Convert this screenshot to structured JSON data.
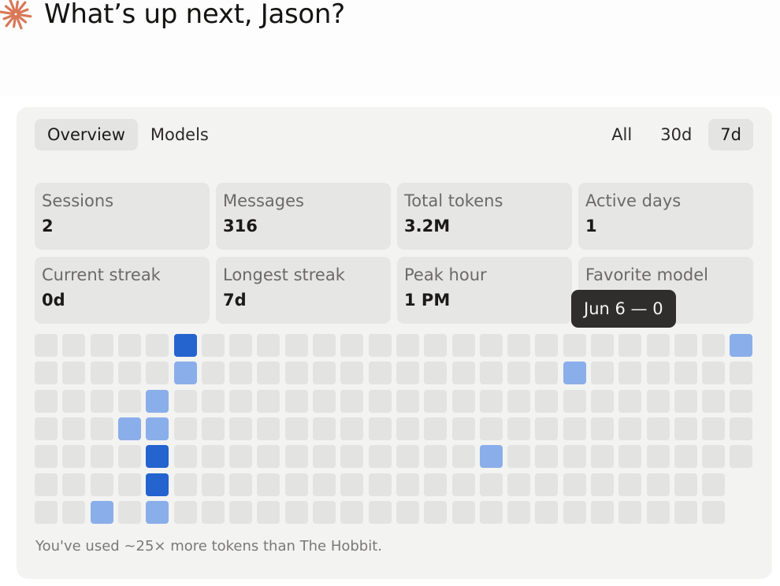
{
  "greeting": {
    "text": "What’s up next, Jason?",
    "icon": "claude-sparkle-icon",
    "icon_color": "#d97757"
  },
  "tabs": [
    {
      "label": "Overview",
      "active": true
    },
    {
      "label": "Models",
      "active": false
    }
  ],
  "ranges": [
    {
      "label": "All",
      "active": false
    },
    {
      "label": "30d",
      "active": false
    },
    {
      "label": "7d",
      "active": true
    }
  ],
  "stats": [
    {
      "label": "Sessions",
      "value": "2"
    },
    {
      "label": "Messages",
      "value": "316"
    },
    {
      "label": "Total tokens",
      "value": "3.2M"
    },
    {
      "label": "Active days",
      "value": "1"
    },
    {
      "label": "Current streak",
      "value": "0d"
    },
    {
      "label": "Longest streak",
      "value": "7d"
    },
    {
      "label": "Peak hour",
      "value": "1 PM"
    },
    {
      "label": "Favorite model",
      "value": ""
    }
  ],
  "tooltip": {
    "text": "Jun 6 — 0"
  },
  "heatmap": {
    "colors": {
      "empty": "#e3e3e2",
      "low": "#8aaee9",
      "high": "#2563cf"
    },
    "weeks": 26,
    "days": 7,
    "last_week_days": 5,
    "levels": [
      [
        0,
        0,
        0,
        0,
        0,
        0,
        0
      ],
      [
        0,
        0,
        0,
        0,
        0,
        0,
        0
      ],
      [
        0,
        0,
        0,
        0,
        0,
        0,
        1
      ],
      [
        0,
        0,
        0,
        1,
        0,
        0,
        0
      ],
      [
        0,
        0,
        1,
        1,
        2,
        2,
        1
      ],
      [
        2,
        1,
        0,
        0,
        0,
        0,
        0
      ],
      [
        0,
        0,
        0,
        0,
        0,
        0,
        0
      ],
      [
        0,
        0,
        0,
        0,
        0,
        0,
        0
      ],
      [
        0,
        0,
        0,
        0,
        0,
        0,
        0
      ],
      [
        0,
        0,
        0,
        0,
        0,
        0,
        0
      ],
      [
        0,
        0,
        0,
        0,
        0,
        0,
        0
      ],
      [
        0,
        0,
        0,
        0,
        0,
        0,
        0
      ],
      [
        0,
        0,
        0,
        0,
        0,
        0,
        0
      ],
      [
        0,
        0,
        0,
        0,
        0,
        0,
        0
      ],
      [
        0,
        0,
        0,
        0,
        0,
        0,
        0
      ],
      [
        0,
        0,
        0,
        0,
        0,
        0,
        0
      ],
      [
        0,
        0,
        0,
        0,
        1,
        0,
        0
      ],
      [
        0,
        0,
        0,
        0,
        0,
        0,
        0
      ],
      [
        0,
        0,
        0,
        0,
        0,
        0,
        0
      ],
      [
        0,
        1,
        0,
        0,
        0,
        0,
        0
      ],
      [
        0,
        0,
        0,
        0,
        0,
        0,
        0
      ],
      [
        0,
        0,
        0,
        0,
        0,
        0,
        0
      ],
      [
        0,
        0,
        0,
        0,
        0,
        0,
        0
      ],
      [
        0,
        0,
        0,
        0,
        0,
        0,
        0
      ],
      [
        0,
        0,
        0,
        0,
        0,
        0,
        0
      ],
      [
        1,
        0,
        0,
        0,
        0,
        0,
        0
      ]
    ]
  },
  "footnote": "You've used ~25× more tokens than The Hobbit."
}
